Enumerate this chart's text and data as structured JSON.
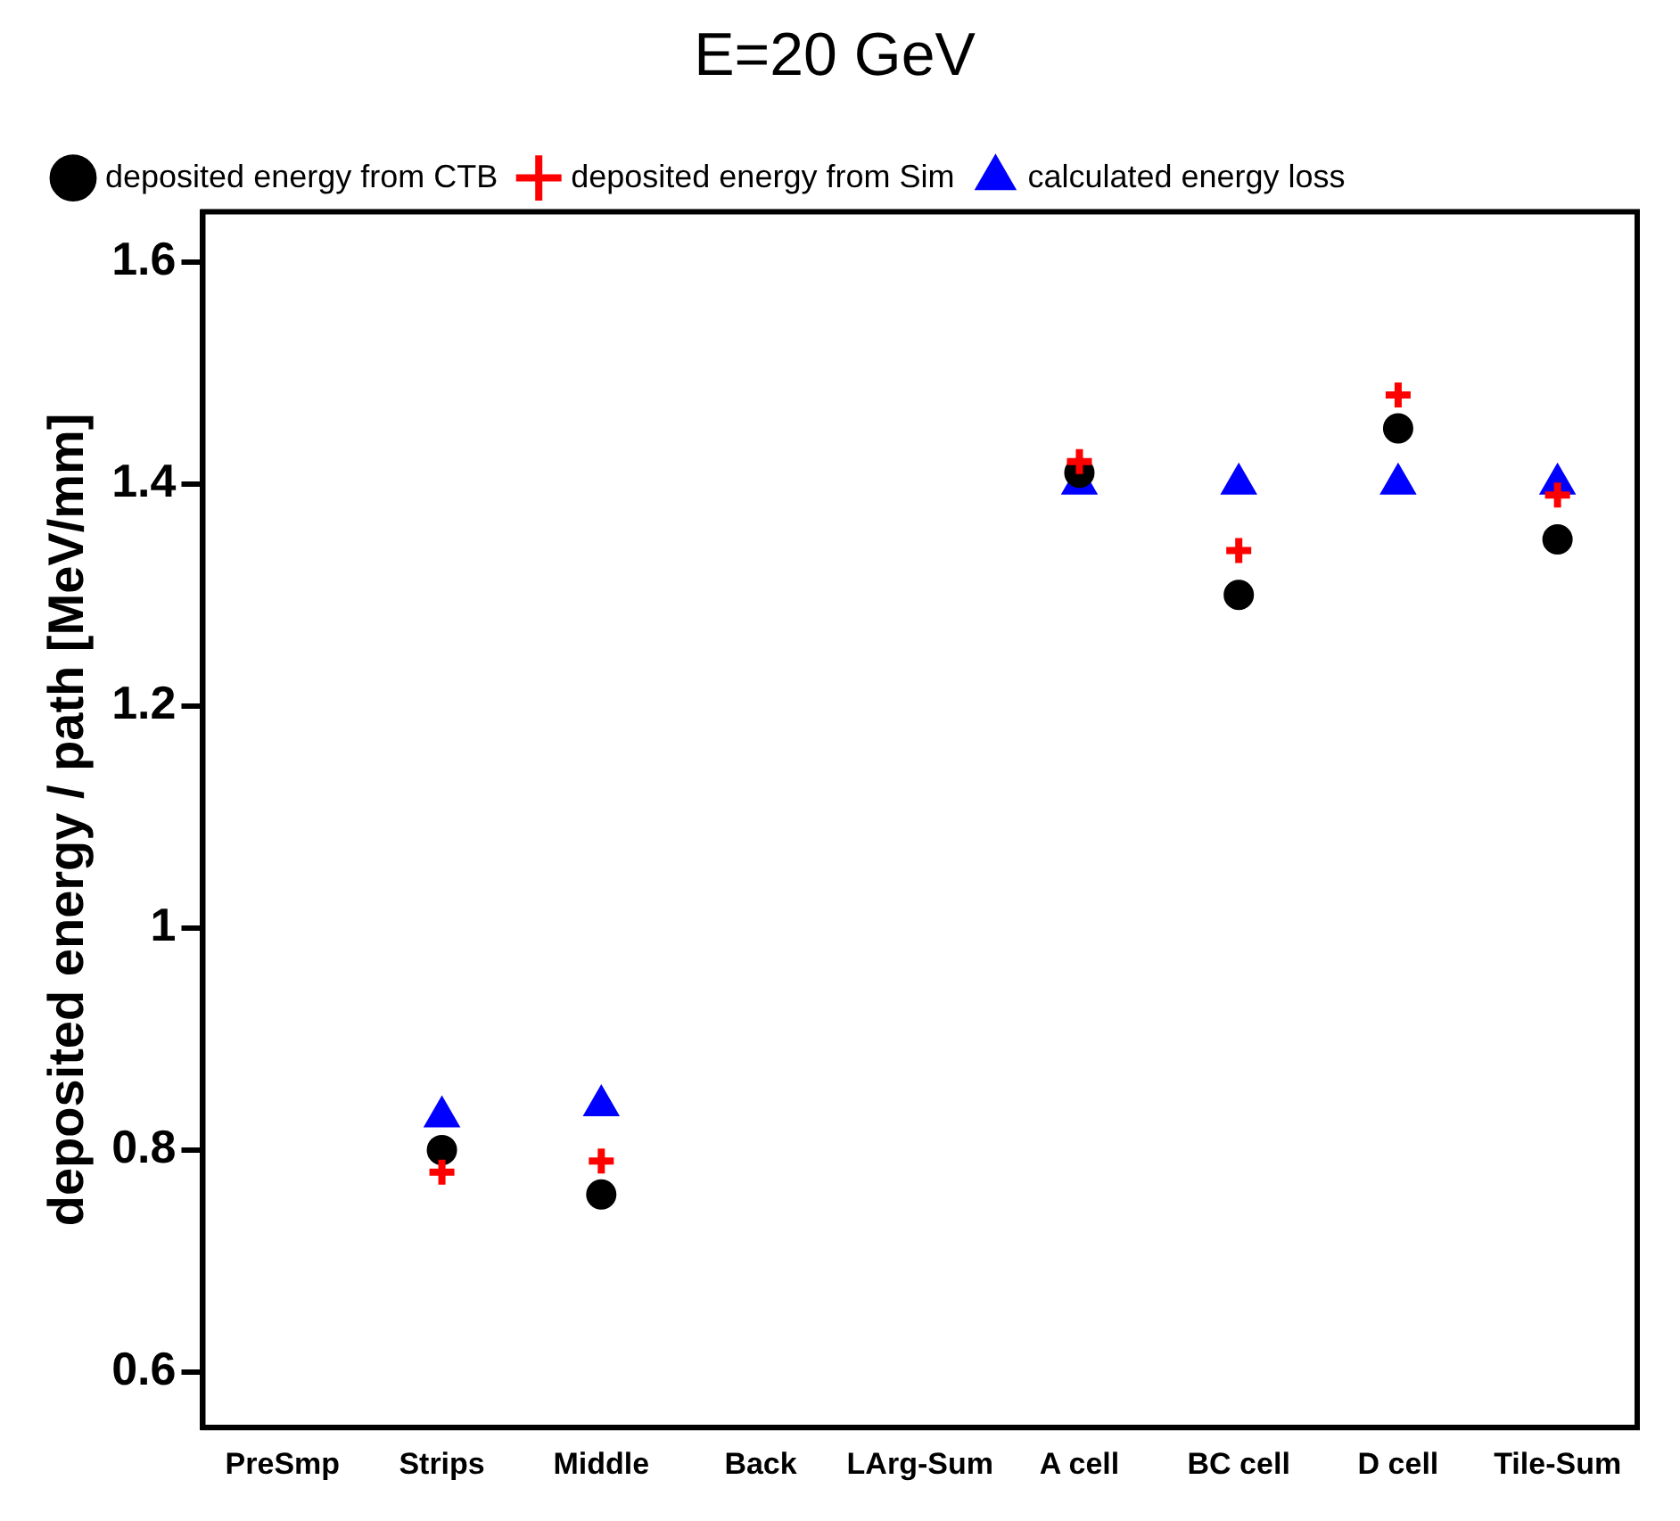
{
  "chart_data": {
    "type": "scatter",
    "title": "E=20 GeV",
    "ylabel": "deposited energy / path [MeV/mm]",
    "categories": [
      "PreSmp",
      "Strips",
      "Middle",
      "Back",
      "LArg-Sum",
      "A cell",
      "BC cell",
      "D cell",
      "Tile-Sum"
    ],
    "series": [
      {
        "name": "deposited energy from CTB",
        "color": "#000000",
        "marker": "circle",
        "values": [
          null,
          0.8,
          0.76,
          null,
          null,
          1.41,
          1.3,
          1.45,
          1.35
        ]
      },
      {
        "name": "deposited energy from Sim",
        "color": "#ff0000",
        "marker": "cross",
        "values": [
          null,
          0.78,
          0.79,
          null,
          null,
          1.42,
          1.34,
          1.48,
          1.39
        ]
      },
      {
        "name": "calculated energy loss",
        "color": "#0000ff",
        "marker": "triangle",
        "values": [
          null,
          0.83,
          0.84,
          null,
          null,
          1.4,
          1.4,
          1.4,
          1.4
        ]
      }
    ],
    "ylim": [
      0.55,
      1.645
    ],
    "yticks": [
      0.6,
      0.8,
      {
        "value": 1,
        "label": "1"
      },
      1.2,
      1.4,
      1.6
    ],
    "grid": false,
    "legend": "top left"
  }
}
